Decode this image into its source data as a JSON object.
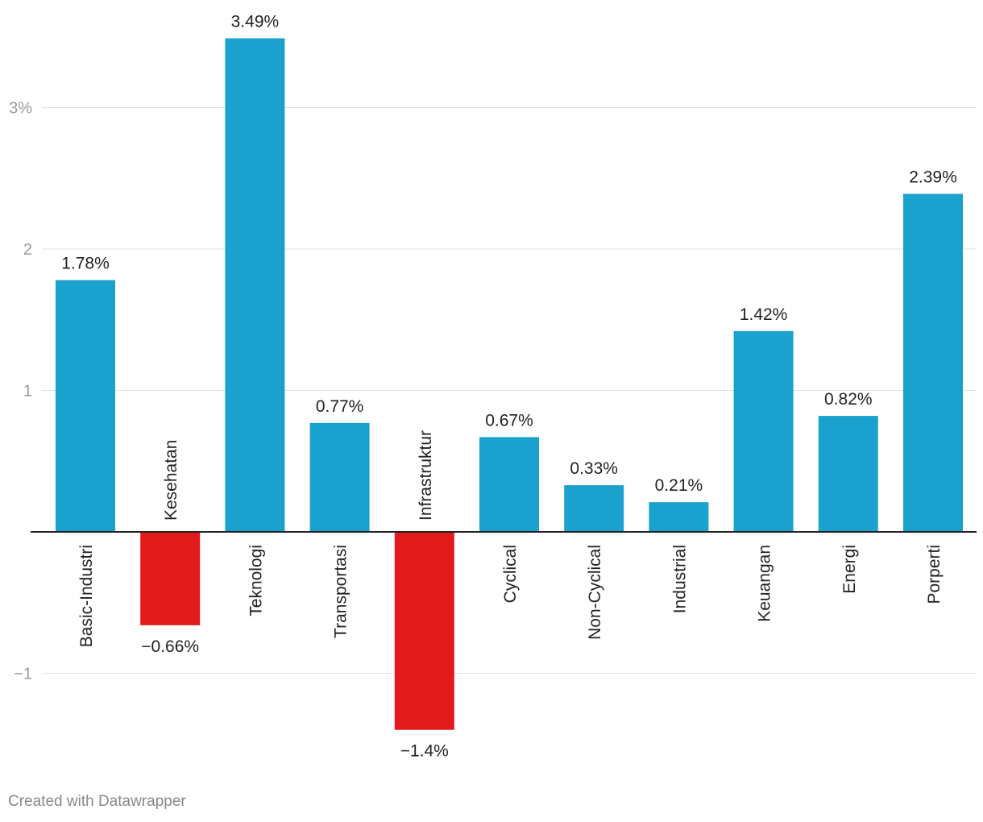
{
  "chart_data": {
    "type": "bar",
    "categories": [
      "Basic-Industri",
      "Kesehatan",
      "Teknologi",
      "Transportasi",
      "Infrastruktur",
      "Cyclical",
      "Non-Cyclical",
      "Industrial",
      "Keuangan",
      "Energi",
      "Porperti"
    ],
    "values": [
      1.78,
      -0.66,
      3.49,
      0.77,
      -1.4,
      0.67,
      0.33,
      0.21,
      1.42,
      0.82,
      2.39
    ],
    "value_labels": [
      "1.78%",
      "−0.66%",
      "3.49%",
      "0.77%",
      "−1.4%",
      "0.67%",
      "0.33%",
      "0.21%",
      "1.42%",
      "0.82%",
      "2.39%"
    ],
    "y_ticks": [
      {
        "value": 3,
        "label": "3%"
      },
      {
        "value": 2,
        "label": "2"
      },
      {
        "value": 1,
        "label": "1"
      },
      {
        "value": -1,
        "label": "−1"
      }
    ],
    "ylim": [
      -1.5,
      3.6
    ],
    "grid": true,
    "colors": {
      "positive": "#1ba1cd",
      "negative": "#e31a1c",
      "grid": "#e2e2e2",
      "axis": "#222222",
      "tick_label": "#9a9a9a",
      "text": "#222222"
    }
  },
  "footer": {
    "credit": "Created with Datawrapper"
  }
}
